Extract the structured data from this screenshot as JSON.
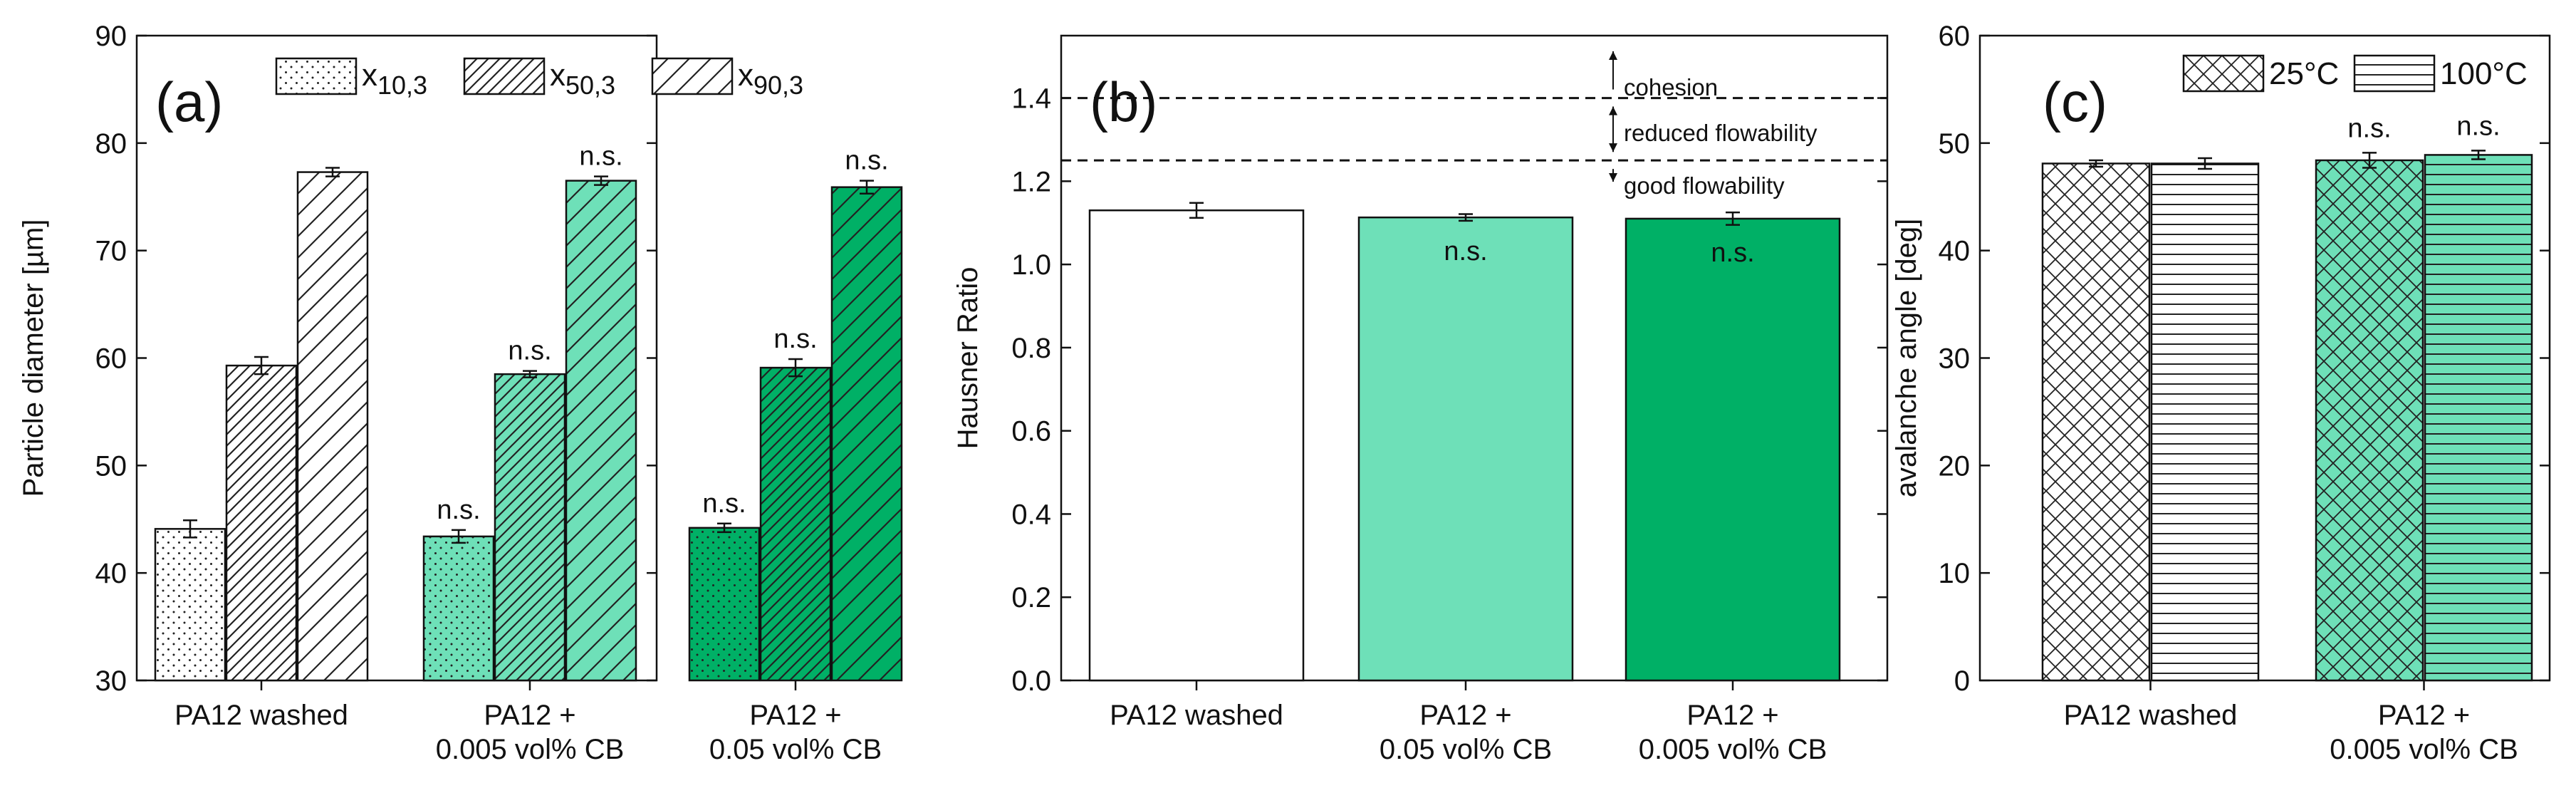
{
  "chart_data": [
    {
      "panel": "(a)",
      "type": "bar",
      "title": "",
      "xlabel": "",
      "ylabel": "Particle diameter [µm]",
      "ylim": [
        30,
        90
      ],
      "yticks": [
        "30",
        "40",
        "50",
        "60",
        "70",
        "80",
        "90"
      ],
      "categories": [
        {
          "line1": "PA12 washed",
          "line2": ""
        },
        {
          "line1": "PA12 +",
          "line2": "0.005 vol% CB"
        },
        {
          "line1": "PA12 +",
          "line2": "0.05 vol% CB"
        }
      ],
      "legend": [
        {
          "base": "x",
          "sub": "10,3"
        },
        {
          "base": "x",
          "sub": "50,3"
        },
        {
          "base": "x",
          "sub": "90,3"
        }
      ],
      "series": [
        {
          "name": "x10,3",
          "values": [
            44.1,
            43.4,
            44.2
          ],
          "errors": [
            0.8,
            0.6,
            0.4
          ],
          "labels": [
            "",
            "n.s.",
            "n.s."
          ]
        },
        {
          "name": "x50,3",
          "values": [
            59.3,
            58.5,
            59.1
          ],
          "errors": [
            0.8,
            0.3,
            0.8
          ],
          "labels": [
            "",
            "n.s.",
            "n.s."
          ]
        },
        {
          "name": "x90,3",
          "values": [
            77.3,
            76.5,
            75.9
          ],
          "errors": [
            0.4,
            0.4,
            0.6
          ],
          "labels": [
            "",
            "n.s.",
            "n.s."
          ]
        }
      ],
      "colors": {
        "washed": "#ffffff",
        "cb1": "#6ee0b8",
        "cb2": "#00b066"
      }
    },
    {
      "panel": "(b)",
      "type": "bar",
      "title": "",
      "xlabel": "",
      "ylabel": "Hausner Ratio",
      "ylim": [
        0.0,
        1.55
      ],
      "yticks": [
        "0.0",
        "0.2",
        "0.4",
        "0.6",
        "0.8",
        "1.0",
        "1.2",
        "1.4"
      ],
      "categories": [
        {
          "line1": "PA12 washed",
          "line2": ""
        },
        {
          "line1": "PA12 +",
          "line2": "0.05 vol% CB"
        },
        {
          "line1": "PA12 +",
          "line2": "0.005 vol% CB"
        }
      ],
      "values": [
        1.13,
        1.113,
        1.11
      ],
      "errors": [
        0.018,
        0.008,
        0.015
      ],
      "labels": [
        "",
        "n.s.",
        "n.s."
      ],
      "thresholds": [
        1.25,
        1.4
      ],
      "annotations": [
        "cohesion",
        "reduced flowability",
        "good flowability"
      ],
      "colors": [
        "#ffffff",
        "#6ee0b8",
        "#00b066"
      ]
    },
    {
      "panel": "(c)",
      "type": "bar",
      "title": "",
      "xlabel": "",
      "ylabel": "avalanche angle [deg]",
      "ylim": [
        0,
        60
      ],
      "yticks": [
        "0",
        "10",
        "20",
        "30",
        "40",
        "50",
        "60"
      ],
      "categories": [
        {
          "line1": "PA12 washed",
          "line2": ""
        },
        {
          "line1": "PA12 +",
          "line2": "0.005 vol% CB"
        }
      ],
      "legend": [
        "25°C",
        "100°C"
      ],
      "series": [
        {
          "name": "25°C",
          "values": [
            48.1,
            48.4
          ],
          "errors": [
            0.3,
            0.7
          ],
          "labels": [
            "",
            "n.s."
          ]
        },
        {
          "name": "100°C",
          "values": [
            48.1,
            48.9
          ],
          "errors": [
            0.5,
            0.4
          ],
          "labels": [
            "",
            "n.s."
          ]
        }
      ],
      "colors": {
        "washed": "#ffffff",
        "cb1": "#6ee0b8"
      }
    }
  ]
}
